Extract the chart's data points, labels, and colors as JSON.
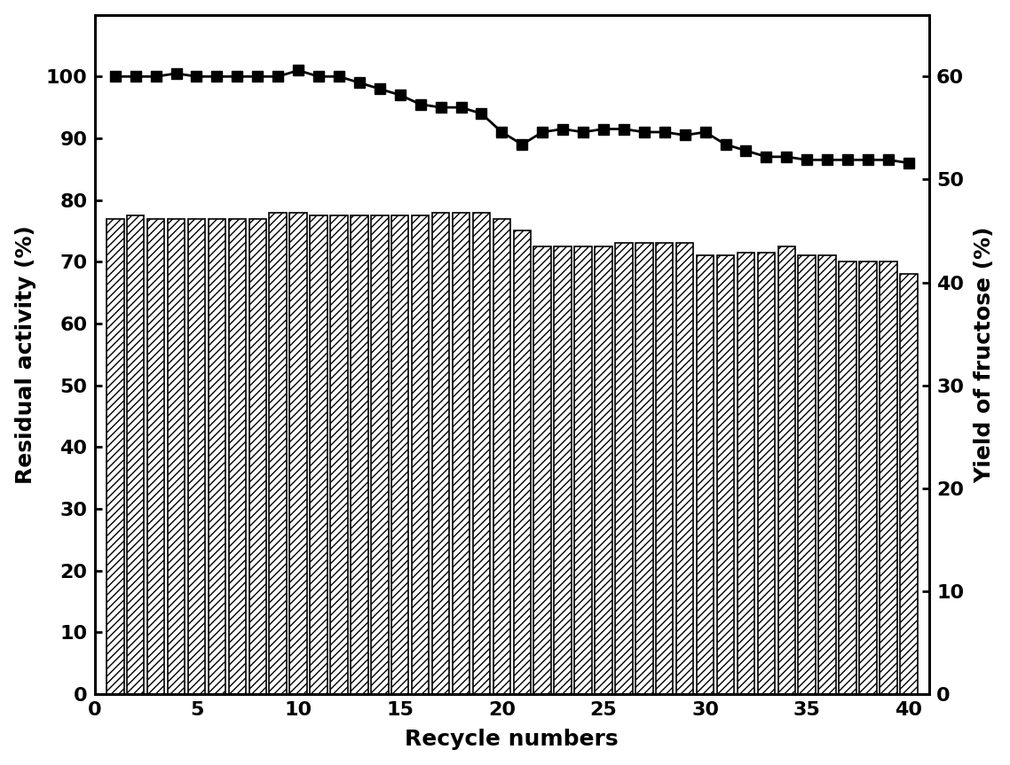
{
  "bar_x": [
    1,
    2,
    3,
    4,
    5,
    6,
    7,
    8,
    9,
    10,
    11,
    12,
    13,
    14,
    15,
    16,
    17,
    18,
    19,
    20,
    21,
    22,
    23,
    24,
    25,
    26,
    27,
    28,
    29,
    30,
    31,
    32,
    33,
    34,
    35,
    36,
    37,
    38,
    39,
    40
  ],
  "bar_heights": [
    77,
    77.5,
    77,
    77,
    77,
    77,
    77,
    77,
    78,
    78,
    77.5,
    77.5,
    77.5,
    77.5,
    77.5,
    77.5,
    78,
    78,
    78,
    77,
    75,
    72.5,
    72.5,
    72.5,
    72.5,
    73,
    73,
    73,
    73,
    71,
    71,
    71.5,
    71.5,
    72.5,
    71,
    71,
    70,
    70,
    70,
    68
  ],
  "line_x": [
    1,
    2,
    3,
    4,
    5,
    6,
    7,
    8,
    9,
    10,
    11,
    12,
    13,
    14,
    15,
    16,
    17,
    18,
    19,
    20,
    21,
    22,
    23,
    24,
    25,
    26,
    27,
    28,
    29,
    30,
    31,
    32,
    33,
    34,
    35,
    36,
    37,
    38,
    39,
    40
  ],
  "line_y": [
    100,
    100,
    100,
    100.5,
    100,
    100,
    100,
    100,
    100,
    101,
    100,
    100,
    99,
    98,
    97,
    95.5,
    95,
    95,
    94,
    91,
    89,
    91,
    91.5,
    91,
    91.5,
    91.5,
    91,
    91,
    90.5,
    91,
    89,
    88,
    87,
    87,
    86.5,
    86.5,
    86.5,
    86.5,
    86.5,
    86
  ],
  "left_ylabel": "Residual activity (%)",
  "right_ylabel": "Yield of fructose (%)",
  "xlabel": "Recycle numbers",
  "left_ylim": [
    0,
    110
  ],
  "right_ylim": [
    0,
    66
  ],
  "left_yticks": [
    0,
    10,
    20,
    30,
    40,
    50,
    60,
    70,
    80,
    90,
    100
  ],
  "right_yticks": [
    0,
    10,
    20,
    30,
    40,
    50,
    60
  ],
  "xticks": [
    0,
    5,
    10,
    15,
    20,
    25,
    30,
    35,
    40
  ],
  "bar_color": "white",
  "bar_edgecolor": "black",
  "line_color": "black",
  "marker": "s",
  "marker_color": "black",
  "hatch": "////",
  "background_color": "white",
  "bar_linewidth": 1.2,
  "spine_linewidth": 2.0,
  "tick_labelsize": 16,
  "label_fontsize": 18,
  "markersize": 9,
  "linewidth": 2.0
}
